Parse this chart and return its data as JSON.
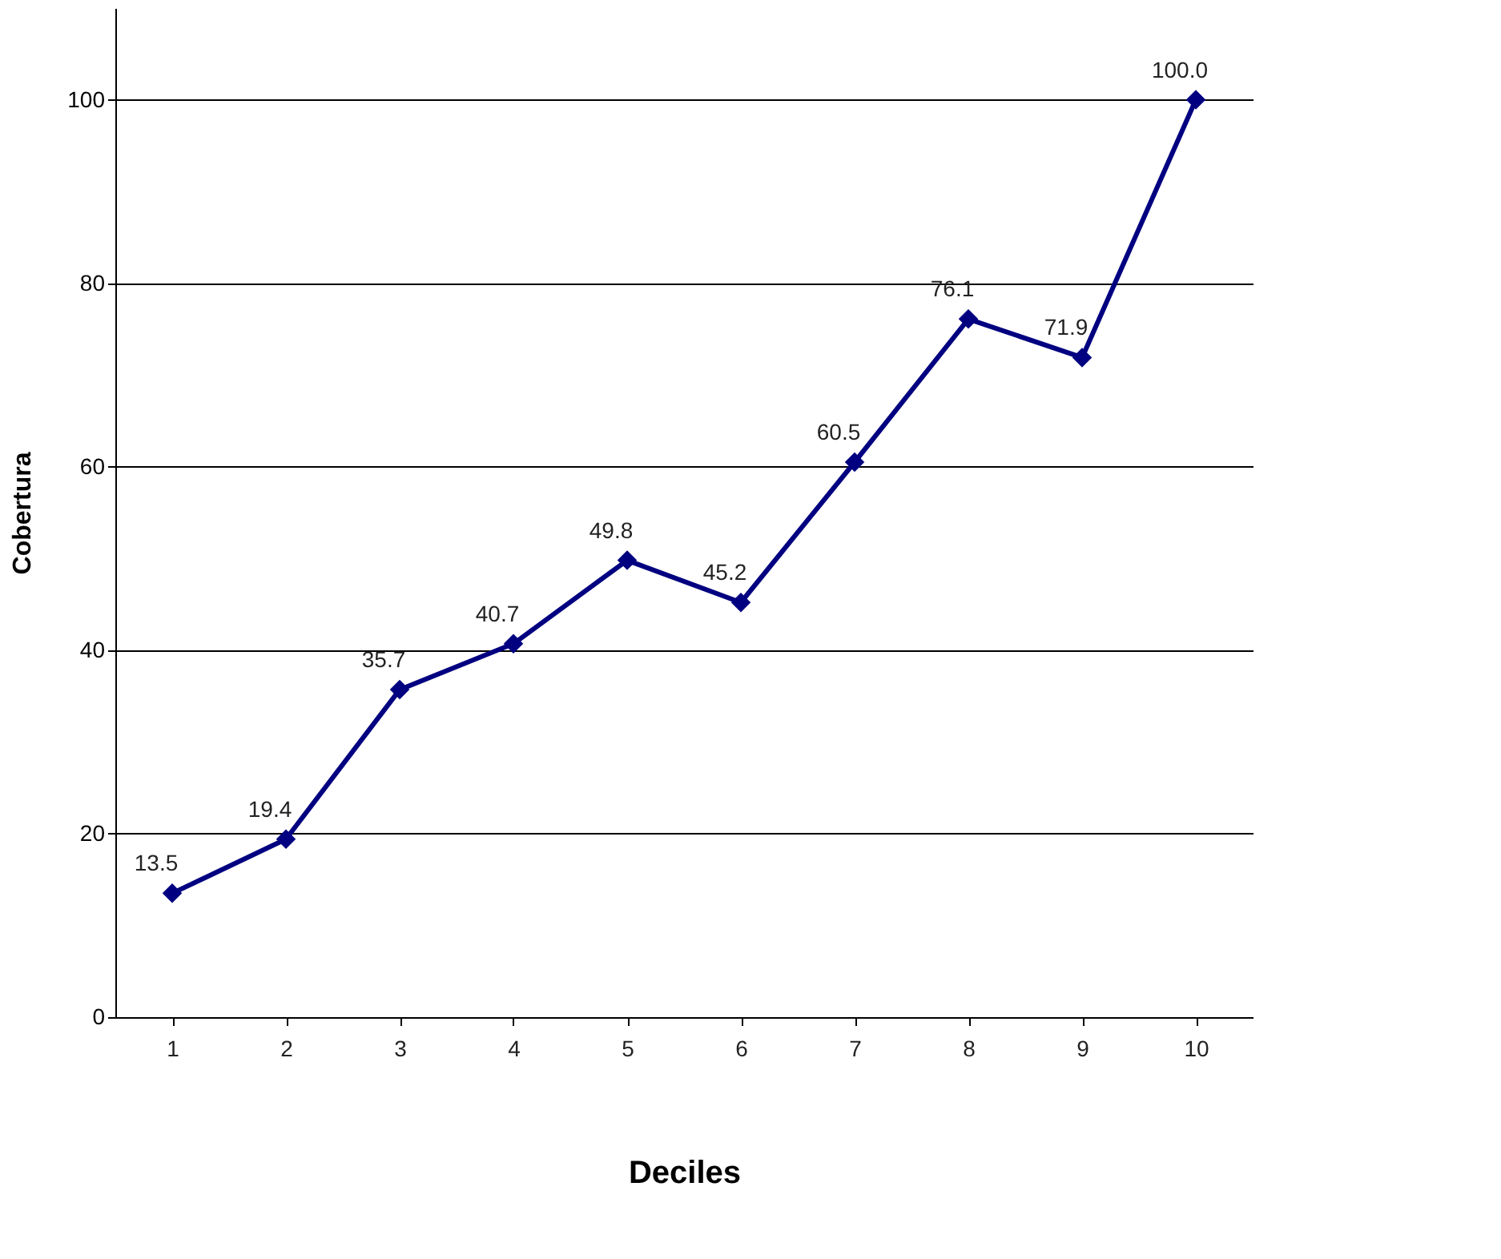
{
  "chart_data": {
    "type": "line",
    "xlabel": "Deciles",
    "ylabel": "Cobertura",
    "categories": [
      "1",
      "2",
      "3",
      "4",
      "5",
      "6",
      "7",
      "8",
      "9",
      "10"
    ],
    "series": [
      {
        "color": "#000080",
        "values": [
          13.5,
          19.4,
          35.7,
          40.7,
          49.8,
          45.2,
          60.5,
          76.1,
          71.9,
          100.0
        ],
        "value_labels": [
          "13.5",
          "19.4",
          "35.7",
          "40.7",
          "49.8",
          "45.2",
          "60.5",
          "76.1",
          "71.9",
          "100.0"
        ]
      }
    ],
    "ylim": [
      0,
      110
    ],
    "yticks": [
      0,
      20,
      40,
      60,
      80,
      100
    ],
    "grid": "y",
    "marker": "diamond",
    "line_style": "solid",
    "legend": false
  }
}
